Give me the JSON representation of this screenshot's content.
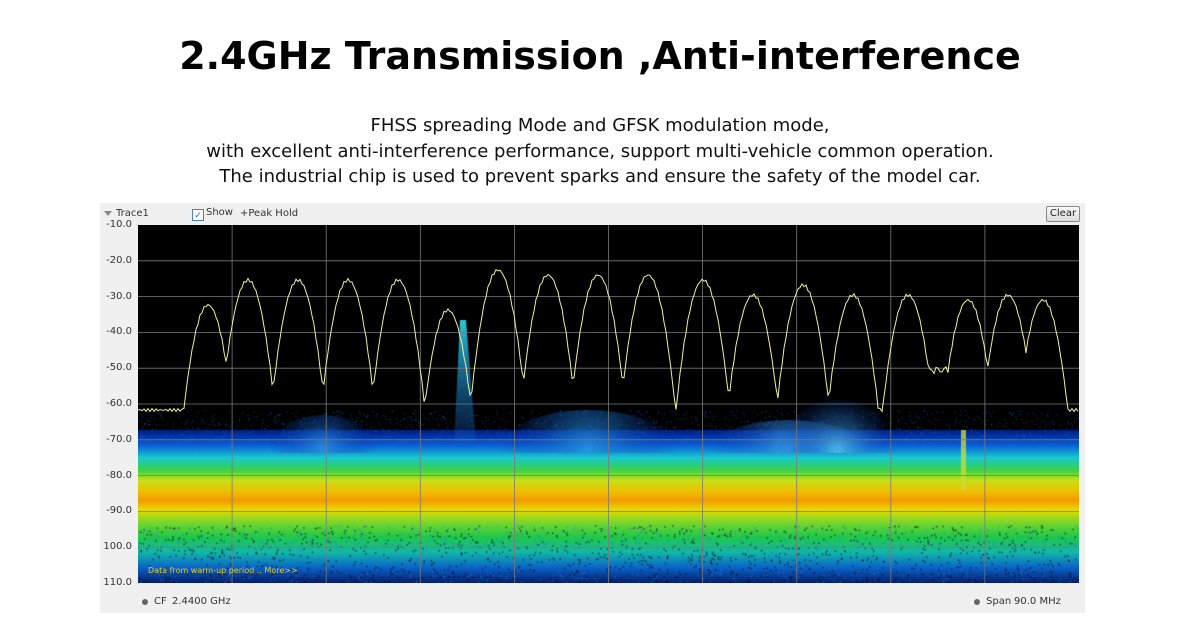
{
  "header": {
    "title": "2.4GHz Transmission ,Anti-interference",
    "line1": "FHSS spreading Mode and GFSK modulation mode,",
    "line2": "with excellent anti-interference performance, support multi-vehicle common operation.",
    "line3": "The industrial chip is used to prevent sparks and ensure the safety of the model car."
  },
  "analyzer": {
    "trace_label": "Trace1",
    "show_label": "Show",
    "peak_hold_label": "+Peak Hold",
    "clear_label": "Clear",
    "y_labels": [
      "-10.0",
      "-20.0",
      "-30.0",
      "-40.0",
      "-50.0",
      "-60.0",
      "-70.0",
      "-80.0",
      "-90.0",
      "100.0",
      "110.0"
    ],
    "warmup_text": "Data from warm-up period .. More>>",
    "cf_label": "CF",
    "cf_value": "2.4400 GHz",
    "span_label": "Span",
    "span_value": "90.0 MHz",
    "colors": {
      "trace": "#f0f0a0",
      "grid": "#7a7a7a",
      "background": "#000000",
      "warmup_text": "#f2d000"
    }
  }
}
